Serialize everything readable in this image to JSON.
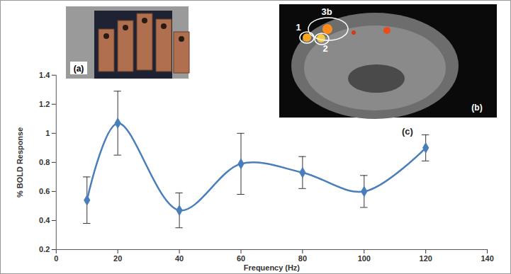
{
  "chart_data": {
    "type": "line",
    "x_label": "Frequency (Hz)",
    "y_label": "% BOLD Response",
    "annotations": [
      "(c)"
    ],
    "x": [
      10,
      20,
      40,
      60,
      80,
      100,
      120
    ],
    "values": [
      0.54,
      1.07,
      0.47,
      0.79,
      0.73,
      0.6,
      0.9
    ],
    "errors": [
      0.16,
      0.22,
      0.12,
      0.21,
      0.11,
      0.11,
      0.09
    ],
    "color": "#4a7ebb",
    "marker": "diamond",
    "line_style": "smooth",
    "xlim": [
      0,
      140
    ],
    "xticks": [
      0,
      20,
      40,
      60,
      80,
      100,
      120,
      140
    ],
    "ylim": [
      0.2,
      1.4
    ],
    "yticks": [
      0.2,
      0.4,
      0.6,
      0.8,
      1,
      1.2,
      1.4
    ],
    "grid": false
  },
  "panels": [
    {
      "label": "(a)"
    },
    {
      "label": "(b)",
      "regions": [
        "1",
        "2",
        "3b"
      ]
    }
  ]
}
